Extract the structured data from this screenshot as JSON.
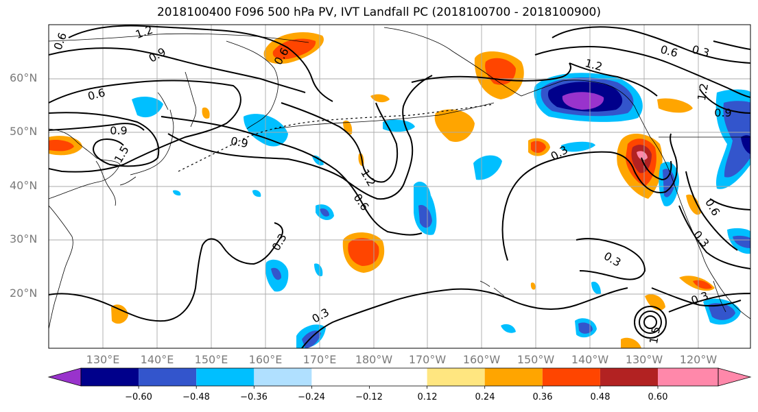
{
  "title": "2018100400 F096 500 hPa PV, IVT Landfall PC (2018100700 - 2018100900)",
  "latitude_labels": [
    "60°N",
    "50°N",
    "40°N",
    "30°N",
    "20°N"
  ],
  "longitude_labels": [
    "130°E",
    "140°E",
    "150°E",
    "160°E",
    "170°E",
    "180°W",
    "170°W",
    "160°W",
    "150°W",
    "140°W",
    "130°W",
    "120°W"
  ],
  "contour_labels": [
    "0.6",
    "1.2",
    "0.9",
    "0.6",
    "0.9",
    "1.5",
    "0.9",
    "1.2",
    "0.6",
    "0.3",
    "0.3",
    "0.3",
    "0.3",
    "0.6",
    "0.3",
    "1.2",
    "0.9",
    "0.6",
    "0.3",
    "0.6",
    "0.3",
    "1.2",
    "1.5"
  ],
  "colorbar": {
    "tick_labels": [
      "−0.60",
      "−0.48",
      "−0.36",
      "−0.24",
      "−0.12",
      "0.12",
      "0.24",
      "0.36",
      "0.48",
      "0.60"
    ],
    "colors": [
      "#9933cc",
      "#00008b",
      "#3355cc",
      "#00bfff",
      "#b0e0ff",
      "#ffffff",
      "#ffe680",
      "#ffa500",
      "#ff4500",
      "#b22222",
      "#ff88aa"
    ]
  },
  "colors": {
    "contour": "#000000",
    "coast": "#000000",
    "grid": "#aaaaaa",
    "axis_label": "#7a7a7a"
  }
}
